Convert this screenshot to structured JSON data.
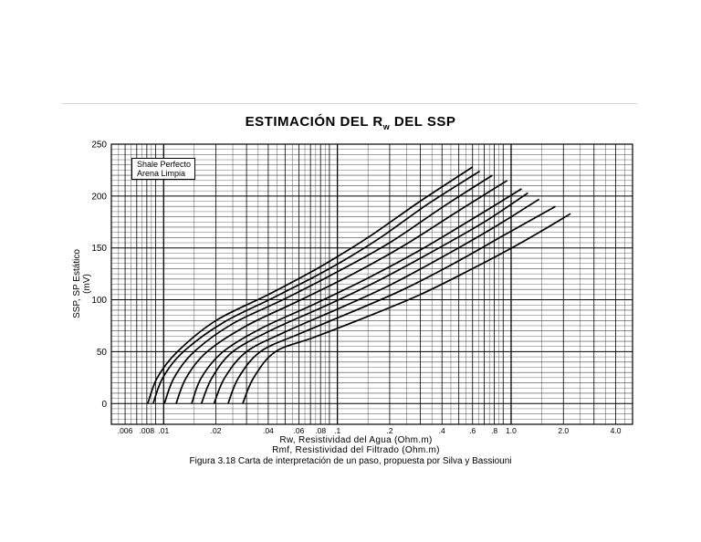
{
  "title_main": "ESTIMACIÓN DEL R",
  "title_sub": "w",
  "title_end": " DEL SSP",
  "caption": "Figura 3.18 Carta de interpretación de un  paso, propuesta por Silva y Bassiouni",
  "legend": {
    "line1": "Shale Perfecto",
    "line2": "Arena Limpia"
  },
  "chart_data": {
    "type": "line",
    "ylabel": "SSP, SP Estático (mV)",
    "xlabel_1": "Rw, Resistividad del Agua (Ohm.m)",
    "xlabel_2": "Rmf, Resistividad del Filtrado (Ohm.m)",
    "x_scale": "log",
    "xlim": [
      0.005,
      5.0
    ],
    "ylim": [
      -20,
      250
    ],
    "grid": true,
    "y_ticks": [
      0,
      50,
      100,
      150,
      200,
      250
    ],
    "x_ticks": [
      {
        "value": 0.006,
        "label": ".006"
      },
      {
        "value": 0.008,
        "label": ".008"
      },
      {
        "value": 0.01,
        "label": ".01"
      },
      {
        "value": 0.02,
        "label": ".02"
      },
      {
        "value": 0.04,
        "label": ".04"
      },
      {
        "value": 0.06,
        "label": ".06"
      },
      {
        "value": 0.08,
        "label": ".08"
      },
      {
        "value": 0.1,
        "label": ".1"
      },
      {
        "value": 0.2,
        "label": ".2"
      },
      {
        "value": 0.4,
        "label": ".4"
      },
      {
        "value": 0.6,
        "label": ".6"
      },
      {
        "value": 0.8,
        "label": ".8"
      },
      {
        "value": 1.0,
        "label": "1.0"
      },
      {
        "value": 2.0,
        "label": "2.0"
      },
      {
        "value": 4.0,
        "label": "4.0"
      }
    ],
    "series": [
      {
        "x": [
          0.0081,
          0.0092,
          0.012,
          0.02,
          0.04,
          0.08,
          0.15,
          0.3,
          0.6
        ],
        "y": [
          0,
          25,
          50,
          80,
          105,
          132,
          160,
          195,
          228
        ]
      },
      {
        "x": [
          0.0087,
          0.0099,
          0.013,
          0.022,
          0.044,
          0.09,
          0.17,
          0.33,
          0.66
        ],
        "y": [
          0,
          25,
          50,
          78,
          103,
          130,
          158,
          192,
          224
        ]
      },
      {
        "x": [
          0.0101,
          0.0115,
          0.015,
          0.025,
          0.05,
          0.1,
          0.2,
          0.4,
          0.78
        ],
        "y": [
          0,
          25,
          50,
          77,
          101,
          127,
          155,
          189,
          220
        ]
      },
      {
        "x": [
          0.0118,
          0.0135,
          0.0178,
          0.03,
          0.06,
          0.12,
          0.24,
          0.48,
          0.95
        ],
        "y": [
          0,
          25,
          50,
          75,
          99,
          124,
          152,
          184,
          215
        ]
      },
      {
        "x": [
          0.0145,
          0.0165,
          0.022,
          0.037,
          0.074,
          0.15,
          0.3,
          0.6,
          1.15
        ],
        "y": [
          0,
          25,
          50,
          73,
          96,
          121,
          148,
          178,
          207
        ]
      },
      {
        "x": [
          0.0165,
          0.019,
          0.025,
          0.042,
          0.085,
          0.17,
          0.34,
          0.7,
          1.25
        ],
        "y": [
          0,
          25,
          50,
          71,
          94,
          118,
          145,
          175,
          203
        ]
      },
      {
        "x": [
          0.0195,
          0.0225,
          0.03,
          0.05,
          0.1,
          0.2,
          0.4,
          0.8,
          1.45
        ],
        "y": [
          0,
          25,
          50,
          69,
          91,
          114,
          141,
          170,
          197
        ]
      },
      {
        "x": [
          0.0235,
          0.027,
          0.036,
          0.06,
          0.12,
          0.24,
          0.48,
          0.95,
          1.8
        ],
        "y": [
          0,
          25,
          50,
          67,
          88,
          110,
          136,
          164,
          190
        ]
      },
      {
        "x": [
          0.0285,
          0.033,
          0.044,
          0.074,
          0.15,
          0.3,
          0.6,
          1.2,
          2.2
        ],
        "y": [
          0,
          25,
          50,
          64,
          84,
          105,
          130,
          157,
          183
        ]
      }
    ]
  }
}
